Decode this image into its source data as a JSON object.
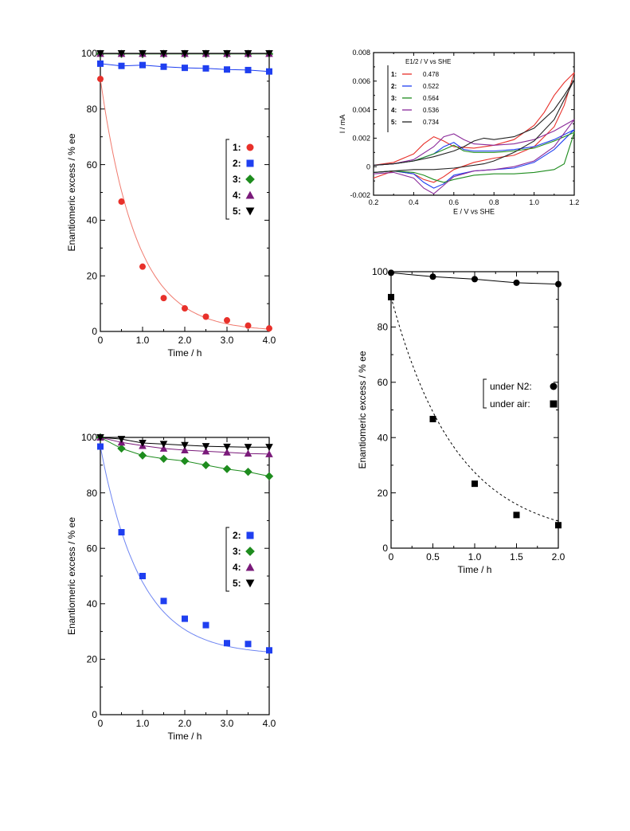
{
  "chart_data": [
    {
      "type": "scatter",
      "panel": "top-left",
      "xlabel": "Time / h",
      "ylabel": "Enantiomeric excess / % ee",
      "xlim": [
        0,
        4
      ],
      "ylim": [
        0,
        100
      ],
      "xticks": [
        0,
        1,
        2,
        3,
        4
      ],
      "xtick_labels": [
        "0",
        "1.0",
        "2.0",
        "3.0",
        "4.0"
      ],
      "yticks": [
        0,
        20,
        40,
        60,
        80,
        100
      ],
      "ytick_labels": [
        "0",
        "20",
        "40",
        "60",
        "80",
        "100"
      ],
      "legend_position": "right",
      "series": [
        {
          "name": "1",
          "label": "1:",
          "marker": "circle",
          "color": "#e8302a",
          "line_color": "#f07a6e",
          "x": [
            0,
            0.5,
            1.0,
            1.5,
            2.0,
            2.5,
            3.0,
            3.5,
            4.0
          ],
          "y": [
            90.8,
            46.7,
            23.3,
            12.0,
            8.3,
            5.3,
            4.0,
            2.1,
            1.1
          ],
          "fit": {
            "kind": "exp",
            "y0": 90.8,
            "k": 1.17
          }
        },
        {
          "name": "2",
          "label": "2:",
          "marker": "square",
          "color": "#1f3ff0",
          "line_color": "#1f3ff0",
          "x": [
            0,
            0.5,
            1.0,
            1.5,
            2.0,
            2.5,
            3.0,
            3.5,
            4.0
          ],
          "y": [
            96.3,
            95.5,
            95.8,
            95.2,
            94.8,
            94.6,
            94.2,
            94.0,
            93.5
          ]
        },
        {
          "name": "3",
          "label": "3:",
          "marker": "diamond",
          "color": "#1e8c1e",
          "line_color": "#1e8c1e",
          "x": [
            0,
            0.5,
            1.0,
            1.5,
            2.0,
            2.5,
            3.0,
            3.5,
            4.0
          ],
          "y": [
            99.8,
            99.8,
            99.8,
            99.8,
            99.8,
            99.8,
            99.8,
            99.8,
            99.8
          ]
        },
        {
          "name": "4",
          "label": "4:",
          "marker": "triangle-up",
          "color": "#7a1a7a",
          "line_color": "#7a1a7a",
          "x": [
            0,
            0.5,
            1.0,
            1.5,
            2.0,
            2.5,
            3.0,
            3.5,
            4.0
          ],
          "y": [
            99.9,
            99.9,
            99.9,
            99.9,
            99.9,
            99.9,
            99.9,
            99.9,
            99.9
          ]
        },
        {
          "name": "5",
          "label": "5:",
          "marker": "triangle-down",
          "color": "#000000",
          "line_color": "#000000",
          "x": [
            0,
            0.5,
            1.0,
            1.5,
            2.0,
            2.5,
            3.0,
            3.5,
            4.0
          ],
          "y": [
            100,
            100,
            100,
            100,
            100,
            100,
            100,
            100,
            100
          ]
        }
      ]
    },
    {
      "type": "line",
      "panel": "top-right",
      "xlabel": "E / V vs SHE",
      "ylabel": "I / mA",
      "xlim": [
        0.2,
        1.2
      ],
      "ylim": [
        -0.002,
        0.008
      ],
      "xticks": [
        0.2,
        0.4,
        0.6,
        0.8,
        1.0,
        1.2
      ],
      "xtick_labels": [
        "0.2",
        "0.4",
        "0.6",
        "0.8",
        "1.0",
        "1.2"
      ],
      "yticks": [
        -0.002,
        0,
        0.002,
        0.004,
        0.006,
        0.008
      ],
      "ytick_labels": [
        "-0.002",
        "0",
        "0.002",
        "0.004",
        "0.006",
        "0.008"
      ],
      "legend_title": "E1/2 / V vs SHE",
      "legend_position": "top-left",
      "series": [
        {
          "name": "1",
          "label": "1:",
          "e_half": "0.478",
          "color": "#e8302a",
          "x": [
            0.2,
            0.3,
            0.4,
            0.45,
            0.5,
            0.55,
            0.6,
            0.7,
            0.8,
            0.9,
            1.0,
            1.05,
            1.1,
            1.15,
            1.2,
            1.15,
            1.1,
            1.0,
            0.9,
            0.8,
            0.7,
            0.6,
            0.55,
            0.5,
            0.45,
            0.4,
            0.3,
            0.2
          ],
          "y": [
            0.0001,
            0.0003,
            0.0009,
            0.0016,
            0.0021,
            0.0018,
            0.0014,
            0.0013,
            0.0015,
            0.0019,
            0.0029,
            0.0038,
            0.005,
            0.0059,
            0.0066,
            0.0043,
            0.0028,
            0.0014,
            0.0008,
            0.0006,
            0.0003,
            -0.0002,
            -0.0007,
            -0.0011,
            -0.0009,
            -0.0005,
            -0.0003,
            -0.0008
          ]
        },
        {
          "name": "2",
          "label": "2:",
          "e_half": "0.522",
          "color": "#1f3ff0",
          "x": [
            0.2,
            0.3,
            0.4,
            0.5,
            0.55,
            0.6,
            0.65,
            0.7,
            0.8,
            0.9,
            1.0,
            1.1,
            1.2,
            1.1,
            1.0,
            0.9,
            0.8,
            0.7,
            0.6,
            0.55,
            0.5,
            0.45,
            0.4,
            0.3,
            0.2
          ],
          "y": [
            0.0001,
            0.0002,
            0.0004,
            0.0009,
            0.0014,
            0.0017,
            0.0012,
            0.0011,
            0.0011,
            0.0012,
            0.0014,
            0.0019,
            0.0026,
            0.0012,
            0.0003,
            -0.0001,
            -0.0002,
            -0.0003,
            -0.0006,
            -0.0012,
            -0.0015,
            -0.0011,
            -0.0005,
            -0.0003,
            -0.0004
          ]
        },
        {
          "name": "3",
          "label": "3:",
          "e_half": "0.564",
          "color": "#1e8c1e",
          "x": [
            0.2,
            0.3,
            0.4,
            0.5,
            0.55,
            0.6,
            0.65,
            0.7,
            0.8,
            0.9,
            1.0,
            1.1,
            1.2,
            1.15,
            1.1,
            1.0,
            0.9,
            0.8,
            0.7,
            0.6,
            0.55,
            0.5,
            0.45,
            0.4,
            0.3,
            0.2
          ],
          "y": [
            0.0001,
            0.0002,
            0.0004,
            0.0009,
            0.0012,
            0.0015,
            0.0011,
            0.001,
            0.001,
            0.0011,
            0.0013,
            0.0018,
            0.0024,
            0.0002,
            -0.0002,
            -0.0004,
            -0.0005,
            -0.0005,
            -0.0006,
            -0.0009,
            -0.0011,
            -0.0009,
            -0.0006,
            -0.0004,
            -0.0003,
            -0.0004
          ]
        },
        {
          "name": "4",
          "label": "4:",
          "e_half": "0.536",
          "color": "#8a2a9a",
          "x": [
            0.2,
            0.3,
            0.4,
            0.5,
            0.55,
            0.6,
            0.65,
            0.7,
            0.8,
            0.9,
            1.0,
            1.1,
            1.2,
            1.1,
            1.0,
            0.9,
            0.8,
            0.7,
            0.6,
            0.55,
            0.5,
            0.45,
            0.4,
            0.3,
            0.2
          ],
          "y": [
            0.0001,
            0.0002,
            0.0005,
            0.0014,
            0.0021,
            0.0023,
            0.0019,
            0.0016,
            0.0015,
            0.0016,
            0.0019,
            0.0025,
            0.0033,
            0.0014,
            0.0004,
            0.0,
            -0.0002,
            -0.0003,
            -0.0007,
            -0.0013,
            -0.0019,
            -0.0015,
            -0.0008,
            -0.0004,
            -0.0005
          ]
        },
        {
          "name": "5",
          "label": "5:",
          "e_half": "0.734",
          "color": "#222222",
          "x": [
            0.2,
            0.3,
            0.4,
            0.5,
            0.6,
            0.65,
            0.7,
            0.75,
            0.8,
            0.9,
            1.0,
            1.1,
            1.15,
            1.2,
            1.1,
            1.0,
            0.9,
            0.8,
            0.75,
            0.7,
            0.6,
            0.5,
            0.4,
            0.3,
            0.2
          ],
          "y": [
            0.0001,
            0.0002,
            0.0004,
            0.0007,
            0.0011,
            0.0014,
            0.0018,
            0.002,
            0.0019,
            0.0021,
            0.0027,
            0.004,
            0.005,
            0.0061,
            0.0033,
            0.0018,
            0.001,
            0.0004,
            0.0002,
            0.0001,
            -0.0001,
            -0.0002,
            -0.0002,
            -0.0003,
            -0.0004
          ]
        }
      ]
    },
    {
      "type": "scatter",
      "panel": "bottom-left",
      "xlabel": "Time / h",
      "ylabel": "Enantiomeric excess / % ee",
      "xlim": [
        0,
        4
      ],
      "ylim": [
        0,
        100
      ],
      "xticks": [
        0,
        1,
        2,
        3,
        4
      ],
      "xtick_labels": [
        "0",
        "1.0",
        "2.0",
        "3.0",
        "4.0"
      ],
      "yticks": [
        0,
        20,
        40,
        60,
        80,
        100
      ],
      "ytick_labels": [
        "0",
        "20",
        "40",
        "60",
        "80",
        "100"
      ],
      "legend_position": "right",
      "series": [
        {
          "name": "2",
          "label": "2:",
          "marker": "square",
          "color": "#1f3ff0",
          "line_color": "#6f86f2",
          "x": [
            0,
            0.5,
            1.0,
            1.5,
            2.0,
            2.5,
            3.0,
            3.5,
            4.0
          ],
          "y": [
            96.7,
            65.8,
            50.0,
            41.0,
            34.6,
            32.3,
            25.8,
            25.5,
            23.2
          ],
          "fit": {
            "kind": "expoff",
            "y0": 96.7,
            "yinf": 21.5,
            "k": 1.05
          }
        },
        {
          "name": "3",
          "label": "3:",
          "marker": "diamond",
          "color": "#1e8c1e",
          "line_color": "#1e8c1e",
          "x": [
            0,
            0.5,
            1.0,
            1.5,
            2.0,
            2.5,
            3.0,
            3.5,
            4.0
          ],
          "y": [
            100,
            96.0,
            93.5,
            92.3,
            91.5,
            90.0,
            88.6,
            87.6,
            86.0
          ]
        },
        {
          "name": "4",
          "label": "4:",
          "marker": "triangle-up",
          "color": "#7a1a7a",
          "line_color": "#7a1a7a",
          "x": [
            0,
            0.5,
            1.0,
            1.5,
            2.0,
            2.5,
            3.0,
            3.5,
            4.0
          ],
          "y": [
            100,
            98.2,
            97.0,
            96.0,
            95.4,
            95.0,
            94.6,
            94.2,
            94.0
          ]
        },
        {
          "name": "5",
          "label": "5:",
          "marker": "triangle-down",
          "color": "#000000",
          "line_color": "#000000",
          "x": [
            0,
            0.5,
            1.0,
            1.5,
            2.0,
            2.5,
            3.0,
            3.5,
            4.0
          ],
          "y": [
            100,
            99.4,
            98.0,
            97.6,
            97.2,
            96.8,
            96.6,
            96.5,
            96.5
          ]
        }
      ]
    },
    {
      "type": "scatter",
      "panel": "bottom-right",
      "xlabel": "Time / h",
      "ylabel": "Enantiomeric excess / % ee",
      "xlim": [
        0,
        2
      ],
      "ylim": [
        0,
        100
      ],
      "xticks": [
        0,
        0.5,
        1.0,
        1.5,
        2.0
      ],
      "xtick_labels": [
        "0",
        "0.5",
        "1.0",
        "1.5",
        "2.0"
      ],
      "yticks": [
        0,
        20,
        40,
        60,
        80,
        100
      ],
      "ytick_labels": [
        "0",
        "20",
        "40",
        "60",
        "80",
        "100"
      ],
      "legend_position": "right",
      "series": [
        {
          "name": "under N2",
          "label": "under N2:",
          "marker": "circle",
          "color": "#000000",
          "line_color": "#000000",
          "x": [
            0,
            0.5,
            1.0,
            1.5,
            2.0
          ],
          "y": [
            99.6,
            98.2,
            97.3,
            96.0,
            95.5
          ]
        },
        {
          "name": "under air",
          "label": "under air:",
          "marker": "square",
          "color": "#000000",
          "line_color": "#000000",
          "dashed": true,
          "x": [
            0,
            0.5,
            1.0,
            1.5,
            2.0
          ],
          "y": [
            90.8,
            46.7,
            23.3,
            12.0,
            8.3
          ],
          "fit": {
            "kind": "expoff",
            "y0": 90.8,
            "yinf": 3.0,
            "k": 1.28
          }
        }
      ]
    }
  ]
}
